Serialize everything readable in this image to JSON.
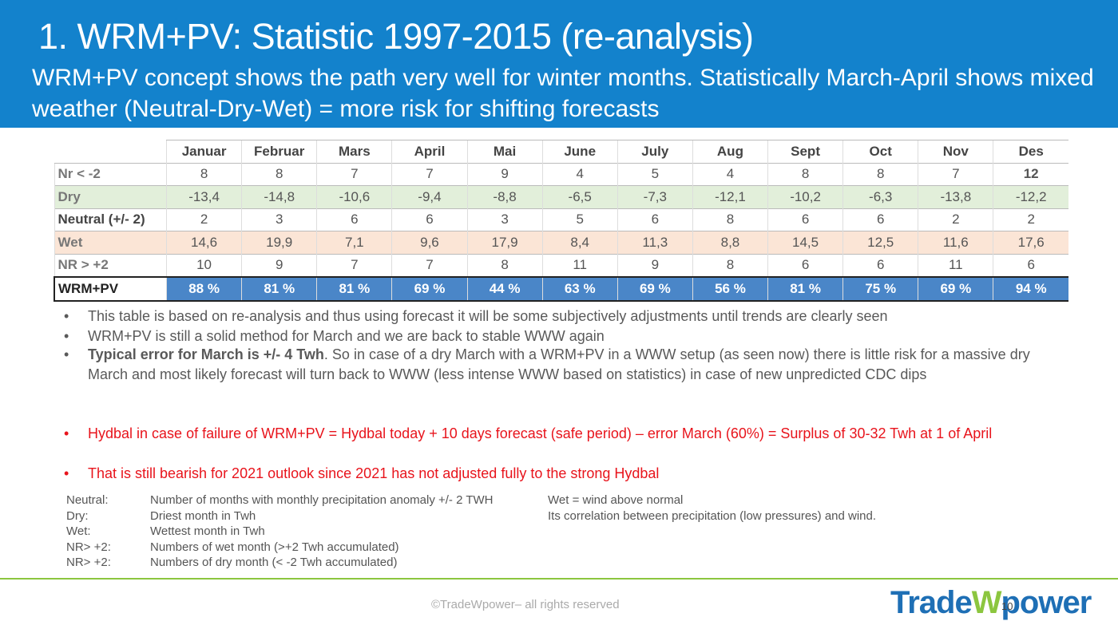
{
  "header": {
    "title": "1. WRM+PV: Statistic 1997-2015 (re-analysis)",
    "subtitle": "WRM+PV concept shows the path very well for winter months. Statistically March-April shows mixed weather (Neutral-Dry-Wet) = more risk for shifting forecasts"
  },
  "table": {
    "columns": [
      "Januar",
      "Februar",
      "Mars",
      "April",
      "Mai",
      "June",
      "July",
      "Aug",
      "Sept",
      "Oct",
      "Nov",
      "Des"
    ],
    "rows": [
      {
        "label": "Nr < -2",
        "cells": [
          "8",
          "8",
          "7",
          "7",
          "9",
          "4",
          "5",
          "4",
          "8",
          "8",
          "7",
          "12"
        ]
      },
      {
        "label": "Dry",
        "cells": [
          "-13,4",
          "-14,8",
          "-10,6",
          "-9,4",
          "-8,8",
          "-6,5",
          "-7,3",
          "-12,1",
          "-10,2",
          "-6,3",
          "-13,8",
          "-12,2"
        ]
      },
      {
        "label": "Neutral (+/- 2)",
        "cells": [
          "2",
          "3",
          "6",
          "6",
          "3",
          "5",
          "6",
          "8",
          "6",
          "6",
          "2",
          "2"
        ]
      },
      {
        "label": "Wet",
        "cells": [
          "14,6",
          "19,9",
          "7,1",
          "9,6",
          "17,9",
          "8,4",
          "11,3",
          "8,8",
          "14,5",
          "12,5",
          "11,6",
          "17,6"
        ]
      },
      {
        "label": "NR > +2",
        "cells": [
          "10",
          "9",
          "7",
          "7",
          "8",
          "11",
          "9",
          "8",
          "6",
          "6",
          "11",
          "6"
        ]
      },
      {
        "label": "WRM+PV",
        "cells": [
          "88 %",
          "81 %",
          "81 %",
          "69 %",
          "44 %",
          "63 %",
          "69 %",
          "56 %",
          "81 %",
          "75 %",
          "69 %",
          "94 %"
        ]
      }
    ]
  },
  "bullets": [
    {
      "marker": "•",
      "text": "This table is based on re-analysis and thus using forecast it will be some subjectively adjustments until trends are clearly seen"
    },
    {
      "marker": "•",
      "text": "WRM+PV is still a solid method for March and we are back to stable WWW again"
    },
    {
      "marker": "•",
      "bold": "Typical error for March is +/- 4 Twh",
      "text": ". So in case of a dry March with a WRM+PV in a WWW setup (as seen now) there is little risk for a massive dry March and most likely forecast will turn back to WWW (less intense WWW based on statistics) in case of new unpredicted CDC dips"
    }
  ],
  "red_bullets": [
    {
      "marker": "•",
      "text": "Hydbal in case of failure of WRM+PV = Hydbal today + 10 days forecast (safe period) – error March (60%) = Surplus of 30-32 Twh at 1 of April"
    },
    {
      "marker": "•",
      "text": "That is still bearish for 2021 outlook since 2021 has not adjusted fully to the strong Hydbal"
    }
  ],
  "definitions": [
    {
      "term": "Neutral:",
      "text": "Number of months with monthly precipitation anomaly +/- 2 TWH"
    },
    {
      "term": "Dry:",
      "text": "Driest month in Twh"
    },
    {
      "term": "Wet:",
      "text": "Wettest month in Twh"
    },
    {
      "term": "NR> +2:",
      "text": "Numbers of wet month (>+2 Twh accumulated)"
    },
    {
      "term": "NR> +2:",
      "text": "Numbers of dry month  (< -2 Twh accumulated)"
    }
  ],
  "notes": [
    "Wet = wind above normal",
    "Its correlation between precipitation (low pressures) and wind."
  ],
  "footer": {
    "copyright": "©TradeWpower– all rights reserved",
    "logo": [
      "Trade",
      "W",
      "power"
    ],
    "page": "10"
  }
}
